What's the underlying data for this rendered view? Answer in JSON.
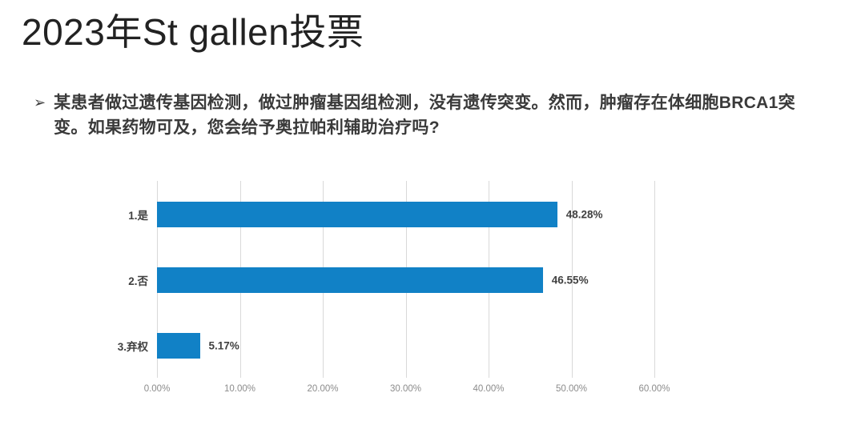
{
  "slide": {
    "title": "2023年St gallen投票",
    "bullet_glyph": "➢",
    "question_lines": [
      "某患者做过遗传基因检测，做过肿瘤基因组检测，没有遗传突变。然而，肿瘤存在体细胞BRCA1突",
      "变。如果药物可及，您会给予奥拉帕利辅助治疗吗?"
    ]
  },
  "chart_data": {
    "type": "bar",
    "orientation": "horizontal",
    "title": "",
    "xlabel": "",
    "ylabel": "",
    "categories": [
      "1.是",
      "2.否",
      "3.弃权"
    ],
    "values": [
      48.28,
      46.55,
      5.17
    ],
    "value_labels": [
      "48.28%",
      "46.55%",
      "5.17%"
    ],
    "xlim": [
      0,
      60
    ],
    "tick_values": [
      0,
      10,
      20,
      30,
      40,
      50,
      60
    ],
    "tick_labels": [
      "0.00%",
      "10.00%",
      "20.00%",
      "30.00%",
      "40.00%",
      "50.00%",
      "60.00%"
    ],
    "grid": true,
    "legend": false,
    "colors": {
      "bar": "#1181C6",
      "gridline": "#d9d9d9",
      "tick_label": "#8c8c8c",
      "category_label": "#404040",
      "value_label": "#404040"
    }
  }
}
